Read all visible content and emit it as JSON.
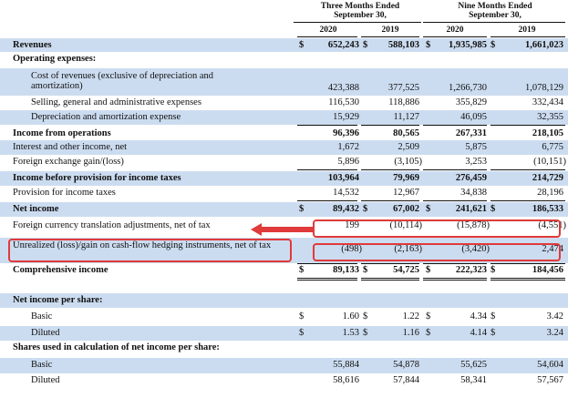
{
  "columns": {
    "three_months": "Three Months Ended September 30,",
    "nine_months": "Nine Months Ended September 30,",
    "years": [
      "2020",
      "2019",
      "2020",
      "2019"
    ]
  },
  "rows": [
    {
      "label": "Revenues",
      "values": [
        "652,243",
        "588,103",
        "1,935,985",
        "1,661,023"
      ]
    },
    {
      "label": "Operating expenses:"
    },
    {
      "label": "Cost of revenues (exclusive of depreciation and amortization)",
      "values": [
        "423,388",
        "377,525",
        "1,266,730",
        "1,078,129"
      ]
    },
    {
      "label": "Selling, general and administrative expenses",
      "values": [
        "116,530",
        "118,886",
        "355,829",
        "332,434"
      ]
    },
    {
      "label": "Depreciation and amortization expense",
      "values": [
        "15,929",
        "11,127",
        "46,095",
        "32,355"
      ]
    },
    {
      "label": "Income from operations",
      "values": [
        "96,396",
        "80,565",
        "267,331",
        "218,105"
      ]
    },
    {
      "label": "Interest and other income, net",
      "values": [
        "1,672",
        "2,509",
        "5,875",
        "6,775"
      ]
    },
    {
      "label": "Foreign exchange gain/(loss)",
      "values": [
        "5,896",
        "(3,105)",
        "3,253",
        "(10,151)"
      ]
    },
    {
      "label": "Income before provision for income taxes",
      "values": [
        "103,964",
        "79,969",
        "276,459",
        "214,729"
      ]
    },
    {
      "label": "Provision for income taxes",
      "values": [
        "14,532",
        "12,967",
        "34,838",
        "28,196"
      ]
    },
    {
      "label": "Net income",
      "values": [
        "89,432",
        "67,002",
        "241,621",
        "186,533"
      ]
    },
    {
      "label": "Foreign currency translation adjustments, net of tax",
      "values": [
        "199",
        "(10,114)",
        "(15,878)",
        "(4,551)"
      ]
    },
    {
      "label": "Unrealized (loss)/gain on cash-flow hedging instruments, net of tax",
      "values": [
        "(498)",
        "(2,163)",
        "(3,420)",
        "2,474"
      ]
    },
    {
      "label": "Comprehensive income",
      "values": [
        "89,133",
        "54,725",
        "222,323",
        "184,456"
      ]
    },
    {
      "label": "Net income per share:"
    },
    {
      "label": "Basic",
      "values": [
        "1.60",
        "1.22",
        "4.34",
        "3.42"
      ]
    },
    {
      "label": "Diluted",
      "values": [
        "1.53",
        "1.16",
        "4.14",
        "3.24"
      ]
    },
    {
      "label": "Shares used in calculation of net income per share:"
    },
    {
      "label": "Basic",
      "values": [
        "55,884",
        "54,878",
        "55,625",
        "54,604"
      ]
    },
    {
      "label": "Diluted",
      "values": [
        "58,616",
        "57,844",
        "58,341",
        "57,567"
      ]
    }
  ],
  "currency_symbol": "$",
  "colors": {
    "shade": "#ccdcf0",
    "highlight": "#e03a3a"
  }
}
